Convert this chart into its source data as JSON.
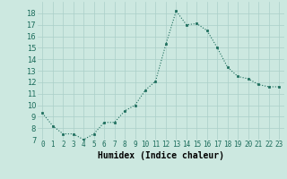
{
  "x": [
    0,
    1,
    2,
    3,
    4,
    5,
    6,
    7,
    8,
    9,
    10,
    11,
    12,
    13,
    14,
    15,
    16,
    17,
    18,
    19,
    20,
    21,
    22,
    23
  ],
  "y": [
    9.3,
    8.2,
    7.5,
    7.5,
    7.0,
    7.5,
    8.5,
    8.5,
    9.5,
    10.0,
    11.3,
    12.1,
    15.3,
    18.2,
    17.0,
    17.1,
    16.5,
    15.0,
    13.3,
    12.5,
    12.3,
    11.8,
    11.6,
    11.6
  ],
  "xlabel": "Humidex (Indice chaleur)",
  "ylim": [
    7,
    19
  ],
  "xlim": [
    -0.5,
    23.5
  ],
  "yticks": [
    7,
    8,
    9,
    10,
    11,
    12,
    13,
    14,
    15,
    16,
    17,
    18
  ],
  "line_color": "#1a6b5a",
  "marker_color": "#1a6b5a",
  "bg_color": "#cce8e0",
  "grid_color": "#aacfc8"
}
